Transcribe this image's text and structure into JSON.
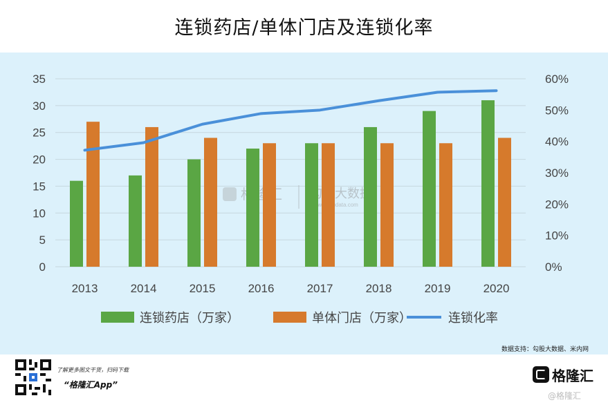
{
  "title": "连锁药店/单体门店及连锁化率",
  "chart_data": {
    "type": "bar",
    "categories": [
      "2013",
      "2014",
      "2015",
      "2016",
      "2017",
      "2018",
      "2019",
      "2020"
    ],
    "series": [
      {
        "name": "连锁药店（万家）",
        "type": "bar",
        "axis": "left",
        "color": "#5aa644",
        "values": [
          16,
          17,
          20,
          22,
          23,
          26,
          29,
          31
        ]
      },
      {
        "name": "单体门店（万家）",
        "type": "bar",
        "axis": "left",
        "color": "#d67a2c",
        "values": [
          27,
          26,
          24,
          23,
          23,
          23,
          23,
          24
        ]
      },
      {
        "name": "连锁化率",
        "type": "line",
        "axis": "right",
        "color": "#4a90d9",
        "values": [
          37.2,
          39.6,
          45.5,
          48.9,
          50.0,
          53.0,
          55.7,
          56.2
        ]
      }
    ],
    "y_left": {
      "min": 0,
      "max": 35,
      "ticks": [
        "0",
        "5",
        "10",
        "15",
        "20",
        "25",
        "30",
        "35"
      ]
    },
    "y_right": {
      "min": 0,
      "max": 60,
      "ticks": [
        "0%",
        "10%",
        "20%",
        "30%",
        "40%",
        "50%",
        "60%"
      ]
    },
    "grid": true,
    "legend_position": "bottom"
  },
  "watermark": {
    "text_left": "格隆汇",
    "text_right": "勾股大数据",
    "url_right": "www.gogudata.com"
  },
  "source": "数据支持：勾股大数据、米内网",
  "footer": {
    "promo": "了解更多图文干货，扫码下载",
    "app_name": "“格隆汇App”",
    "logo_text": "格隆汇",
    "corner_watermark": "@格隆汇"
  }
}
